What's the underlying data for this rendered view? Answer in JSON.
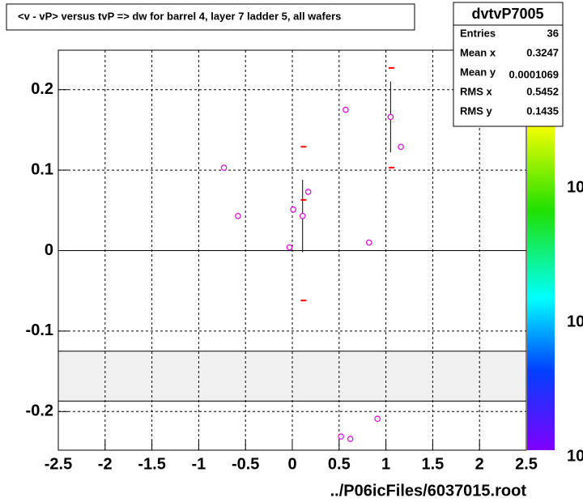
{
  "chart_data": {
    "type": "scatter",
    "title": "<v - vP>       versus  tvP =>  dw for barrel 4, layer 7 ladder 5, all wafers",
    "x_label": "../P06icFiles/6037015.root",
    "xlim": [
      -2.5,
      2.5
    ],
    "ylim": [
      -0.248,
      0.249
    ],
    "xticks": [
      -2.5,
      -2,
      -1.5,
      -1,
      -0.5,
      0,
      0.5,
      1,
      1.5,
      2,
      2.5
    ],
    "yticks": [
      -0.2,
      -0.1,
      0,
      0.1,
      0.2
    ],
    "grid": true,
    "shaded_band": [
      -0.187,
      -0.125
    ],
    "series": [
      {
        "color": "#e000e0",
        "x": [
          -0.73,
          -0.58,
          -0.03,
          0.01,
          0.11,
          0.17,
          0.57,
          0.82,
          1.05,
          1.16,
          0.52,
          0.62,
          0.91
        ],
        "values": [
          0.103,
          0.043,
          0.004,
          0.051,
          0.043,
          0.073,
          0.175,
          0.01,
          0.166,
          0.129,
          -0.231,
          -0.234,
          -0.209
        ],
        "errors": [
          null,
          null,
          null,
          null,
          0.045,
          null,
          null,
          null,
          0.044,
          null,
          null,
          null,
          null
        ]
      },
      {
        "color": "#ff0000",
        "x": [
          0.12,
          0.12,
          0.12,
          1.06,
          1.06
        ],
        "values": [
          0.129,
          0.063,
          -0.062,
          0.227,
          0.103
        ]
      }
    ],
    "stats": {
      "title": "dvtvP7005",
      "rows": [
        [
          "Entries",
          36
        ],
        [
          "Mean x",
          0.3247
        ],
        [
          "Mean y",
          0.0001069
        ],
        [
          "RMS x",
          0.5452
        ],
        [
          "RMS y",
          0.1435
        ]
      ]
    },
    "palette_labels": [
      "10",
      "10",
      "10"
    ]
  }
}
